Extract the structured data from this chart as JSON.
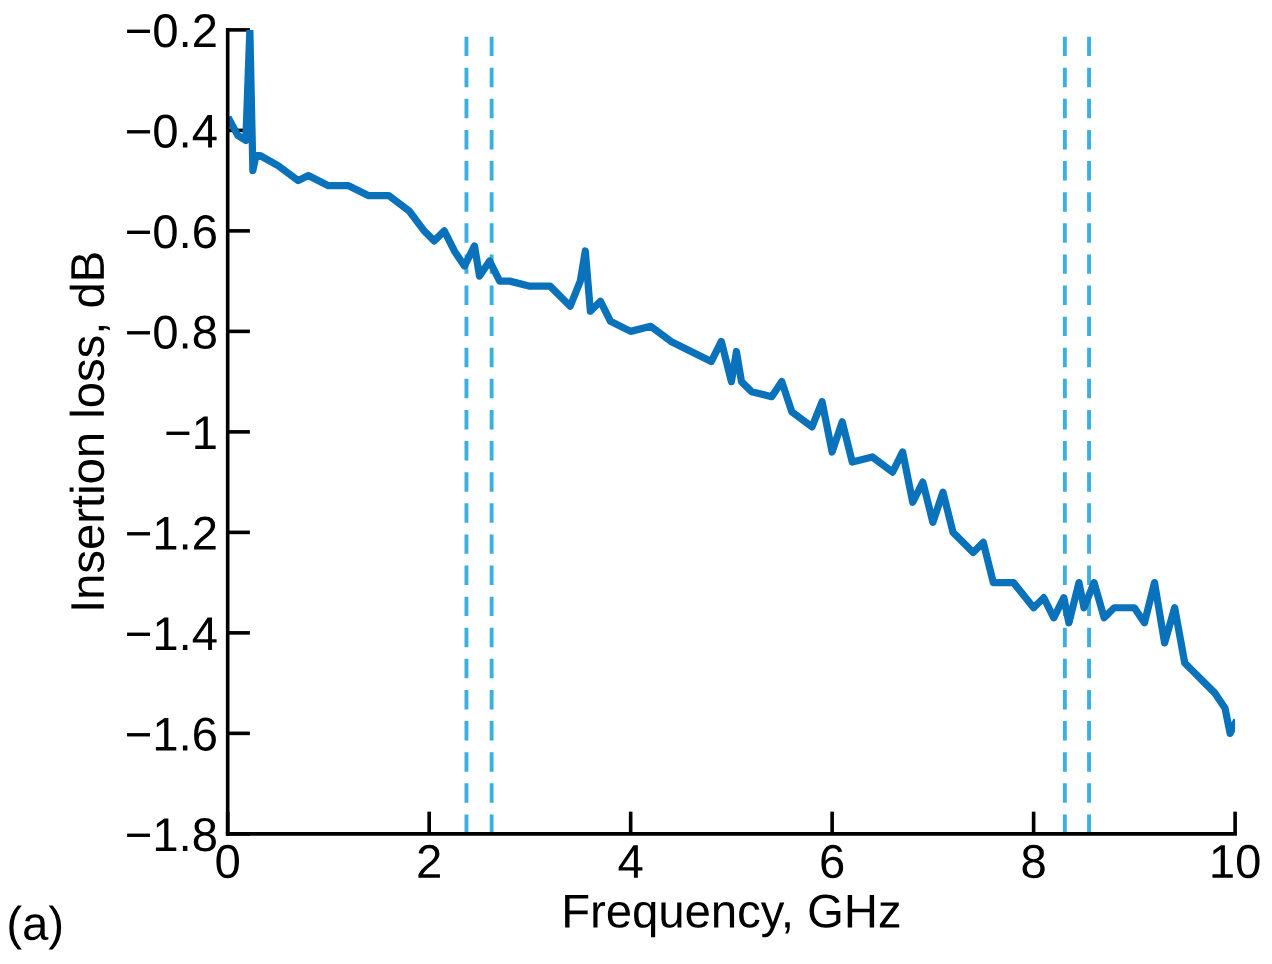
{
  "chart_data": {
    "type": "line",
    "xlabel": "Frequency, GHz",
    "ylabel": "Insertion loss, dB",
    "annotations": [
      "(a)"
    ],
    "xlim": [
      0,
      10
    ],
    "xticks": [
      0,
      2,
      4,
      6,
      8,
      10
    ],
    "ylim": [
      -1.8,
      -0.2
    ],
    "yticks": [
      {
        "value": -1.8,
        "label": "−1.8"
      },
      {
        "value": -1.6,
        "label": "−1.6"
      },
      {
        "value": -1.4,
        "label": "−1.4"
      },
      {
        "value": -1.2,
        "label": "−1.2"
      },
      {
        "value": -1,
        "label": "−1"
      },
      {
        "value": -0.8,
        "label": "−0.8"
      },
      {
        "value": -0.6,
        "label": "−0.6"
      },
      {
        "value": -0.4,
        "label": "−0.4"
      },
      {
        "value": -0.2,
        "label": "−0.2"
      }
    ],
    "grid": false,
    "legend": false,
    "marker": "none",
    "line_style": "solid",
    "series": [
      {
        "color": "#0a72ba",
        "x": [
          0.02,
          0.1,
          0.18,
          0.22,
          0.25,
          0.28,
          0.32,
          0.5,
          0.7,
          0.8,
          1.0,
          1.2,
          1.4,
          1.6,
          1.8,
          1.95,
          2.05,
          2.15,
          2.25,
          2.35,
          2.45,
          2.5,
          2.6,
          2.7,
          2.8,
          3.0,
          3.2,
          3.4,
          3.5,
          3.55,
          3.6,
          3.7,
          3.8,
          4.0,
          4.2,
          4.4,
          4.6,
          4.8,
          4.9,
          5.0,
          5.05,
          5.1,
          5.2,
          5.4,
          5.5,
          5.6,
          5.8,
          5.9,
          6.0,
          6.1,
          6.2,
          6.4,
          6.6,
          6.7,
          6.8,
          6.9,
          7.0,
          7.1,
          7.2,
          7.4,
          7.5,
          7.6,
          7.8,
          8.0,
          8.1,
          8.2,
          8.3,
          8.35,
          8.45,
          8.5,
          8.6,
          8.7,
          8.8,
          9.0,
          9.1,
          9.2,
          9.3,
          9.4,
          9.5,
          9.6,
          9.7,
          9.8,
          9.9,
          9.95,
          10.0
        ],
        "values": [
          -0.38,
          -0.41,
          -0.42,
          -0.2,
          -0.48,
          -0.45,
          -0.45,
          -0.47,
          -0.5,
          -0.49,
          -0.51,
          -0.51,
          -0.53,
          -0.53,
          -0.56,
          -0.6,
          -0.62,
          -0.6,
          -0.64,
          -0.67,
          -0.63,
          -0.69,
          -0.66,
          -0.7,
          -0.7,
          -0.71,
          -0.71,
          -0.75,
          -0.7,
          -0.64,
          -0.76,
          -0.74,
          -0.78,
          -0.8,
          -0.79,
          -0.82,
          -0.84,
          -0.86,
          -0.82,
          -0.9,
          -0.84,
          -0.9,
          -0.92,
          -0.93,
          -0.9,
          -0.96,
          -0.99,
          -0.94,
          -1.04,
          -0.98,
          -1.06,
          -1.05,
          -1.08,
          -1.04,
          -1.14,
          -1.1,
          -1.18,
          -1.12,
          -1.2,
          -1.24,
          -1.22,
          -1.3,
          -1.3,
          -1.35,
          -1.33,
          -1.37,
          -1.33,
          -1.38,
          -1.3,
          -1.35,
          -1.3,
          -1.37,
          -1.35,
          -1.35,
          -1.38,
          -1.3,
          -1.42,
          -1.35,
          -1.46,
          -1.48,
          -1.5,
          -1.52,
          -1.55,
          -1.6,
          -1.58
        ]
      }
    ],
    "ref_lines": [
      {
        "axis": "x",
        "value": 2.37,
        "color": "#3bb0e0",
        "line_style": "dashed"
      },
      {
        "axis": "x",
        "value": 2.62,
        "color": "#3bb0e0",
        "line_style": "dashed"
      },
      {
        "axis": "x",
        "value": 8.31,
        "color": "#3bb0e0",
        "line_style": "dashed"
      },
      {
        "axis": "x",
        "value": 8.55,
        "color": "#3bb0e0",
        "line_style": "dashed"
      }
    ]
  }
}
